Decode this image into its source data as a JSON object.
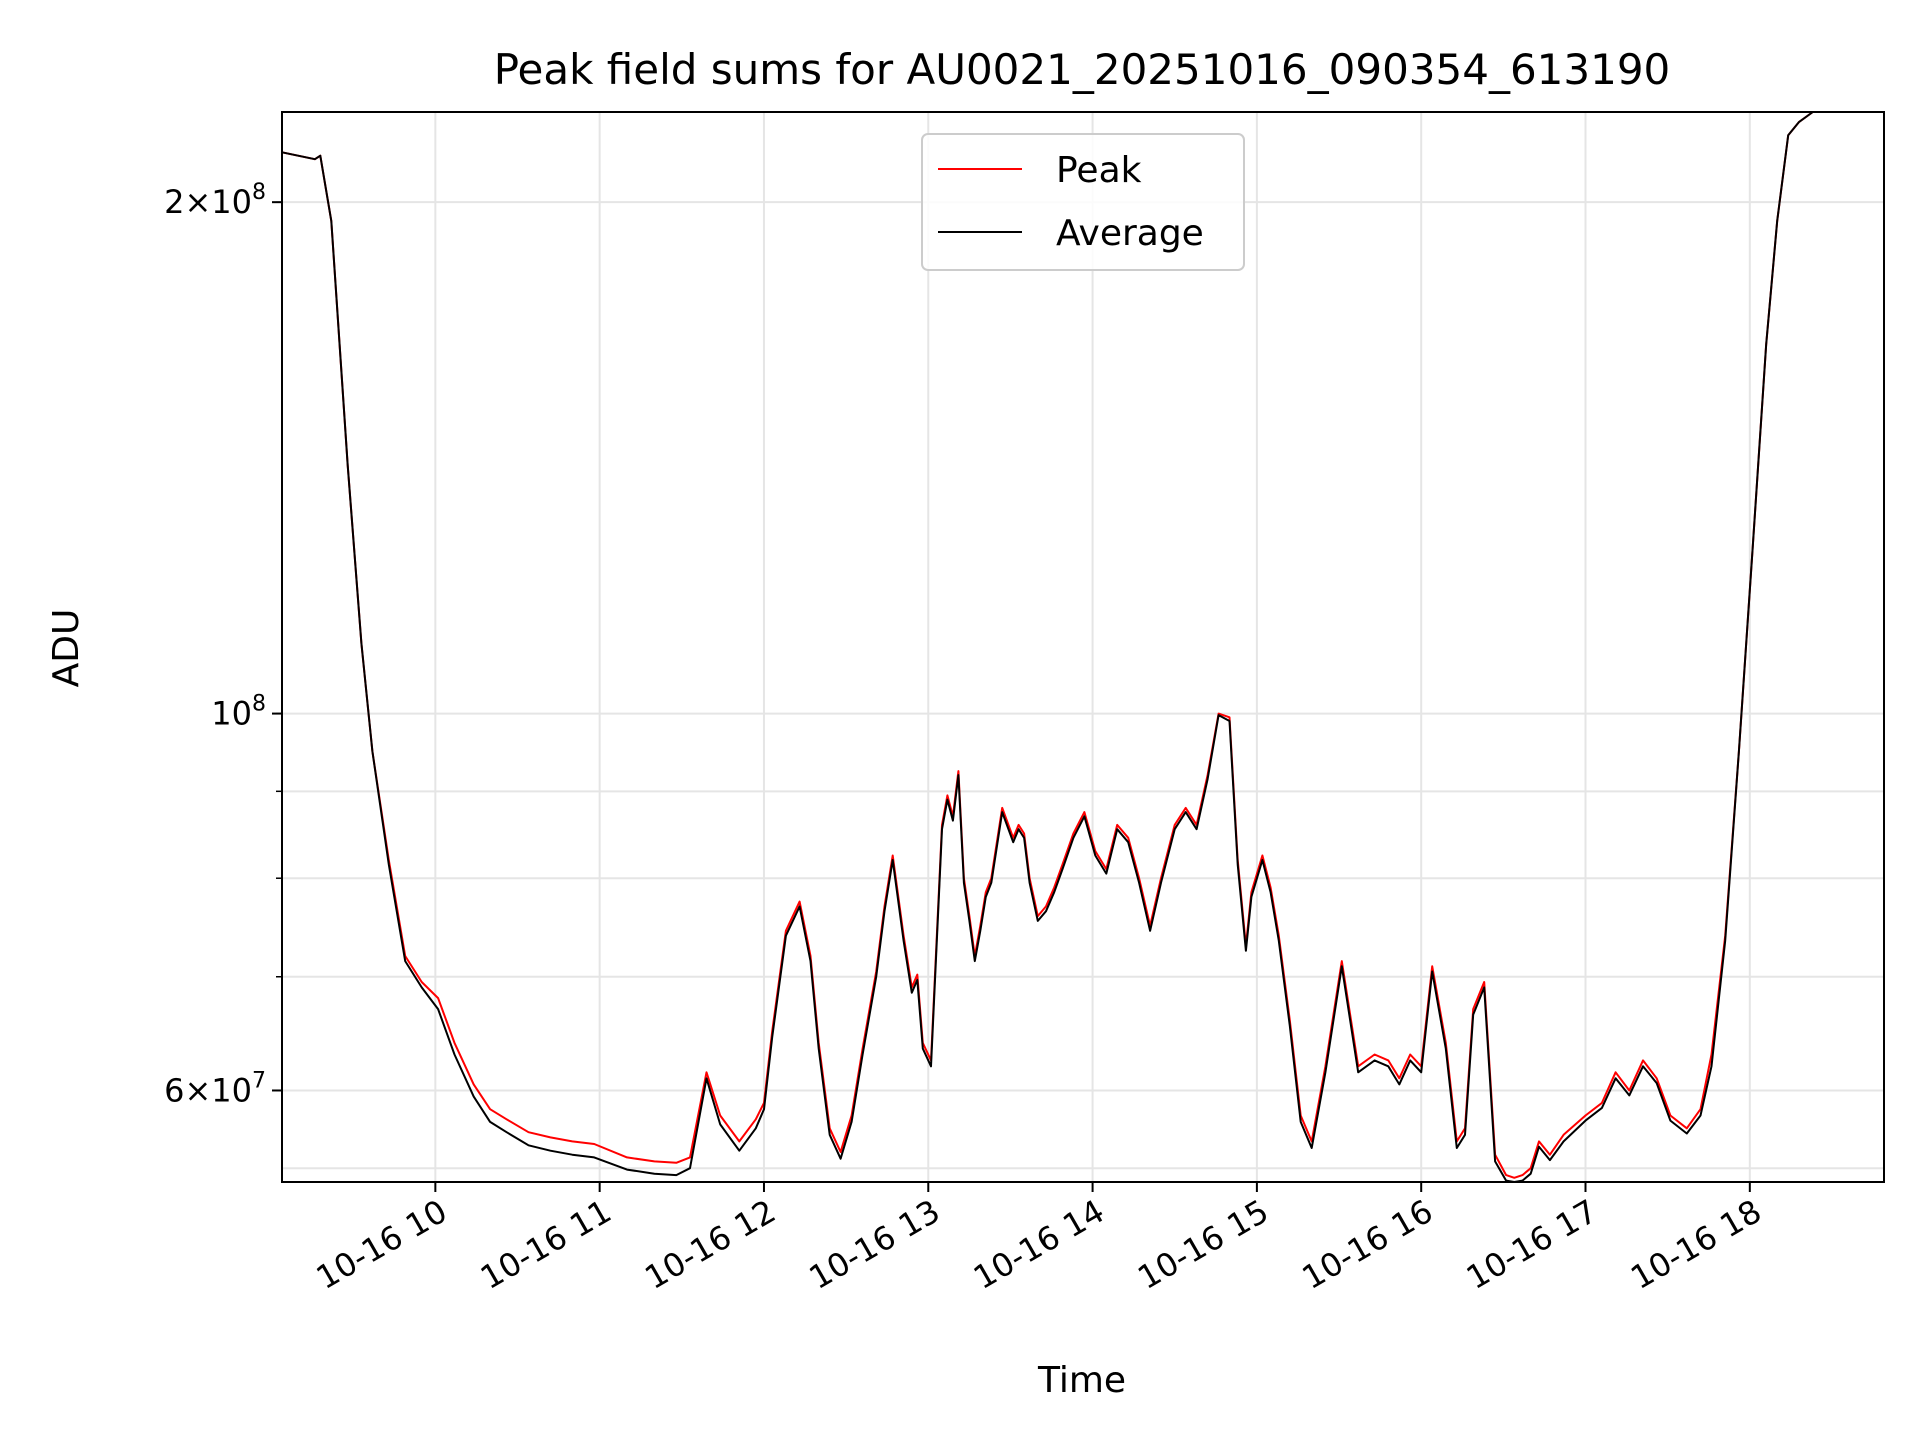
{
  "chart_data": {
    "type": "line",
    "title": "Peak field sums for AU0021_20251016_090354_613190",
    "xlabel": "Time",
    "ylabel": "ADU",
    "yscale": "log",
    "xlim": [
      "2025-10-16 09:04",
      "2025-10-16 18:49"
    ],
    "ylim": [
      53000000,
      226000000
    ],
    "grid": true,
    "legend_position": "top-center",
    "x_tick_labels": [
      "10-16 10",
      "10-16 11",
      "10-16 12",
      "10-16 13",
      "10-16 14",
      "10-16 15",
      "10-16 16",
      "10-16 17",
      "10-16 18"
    ],
    "y_tick_labels": [
      {
        "base": "2",
        "exp": "8",
        "value": 200000000
      },
      {
        "base": "",
        "exp": "8",
        "value": 100000000
      },
      {
        "base": "6",
        "exp": "7",
        "value": 60000000
      }
    ],
    "times_of_day": [
      "09:04",
      "09:16",
      "09:18",
      "09:22",
      "09:28",
      "09:33",
      "09:37",
      "09:43",
      "09:49",
      "09:55",
      "10:01",
      "10:07",
      "10:14",
      "10:20",
      "10:26",
      "10:34",
      "10:42",
      "10:50",
      "10:58",
      "11:10",
      "11:20",
      "11:28",
      "11:33",
      "11:39",
      "11:44",
      "11:51",
      "11:57",
      "12:00",
      "12:03",
      "12:08",
      "12:13",
      "12:17",
      "12:20",
      "12:24",
      "12:28",
      "12:32",
      "12:36",
      "12:41",
      "12:44",
      "12:47",
      "12:51",
      "12:54",
      "12:56",
      "12:58",
      "13:01",
      "13:05",
      "13:07",
      "13:09",
      "13:11",
      "13:13",
      "13:15",
      "13:17",
      "13:19",
      "13:21",
      "13:23",
      "13:27",
      "13:31",
      "13:33",
      "13:35",
      "13:37",
      "13:40",
      "13:43",
      "13:46",
      "13:49",
      "13:53",
      "13:57",
      "14:01",
      "14:05",
      "14:09",
      "14:13",
      "14:17",
      "14:21",
      "14:25",
      "14:30",
      "14:34",
      "14:38",
      "14:42",
      "14:46",
      "14:50",
      "14:53",
      "14:56",
      "14:58",
      "15:02",
      "15:05",
      "15:08",
      "15:12",
      "15:16",
      "15:20",
      "15:25",
      "15:31",
      "15:37",
      "15:43",
      "15:48",
      "15:52",
      "15:56",
      "16:00",
      "16:04",
      "16:09",
      "16:13",
      "16:16",
      "16:19",
      "16:23",
      "16:27",
      "16:31",
      "16:34",
      "16:37",
      "16:40",
      "16:43",
      "16:47",
      "16:52",
      "17:00",
      "17:06",
      "17:11",
      "17:16",
      "17:21",
      "17:26",
      "17:31",
      "17:37",
      "17:42",
      "17:46",
      "17:51",
      "17:56",
      "18:01",
      "18:06",
      "18:10",
      "18:14",
      "18:18",
      "18:23",
      "18:27",
      "18:31",
      "18:35",
      "18:39",
      "18:43",
      "18:49"
    ],
    "series": [
      {
        "name": "Peak",
        "color": "#ff0000",
        "values": [
          214000000,
          212000000,
          213000000,
          195000000,
          140000000,
          110000000,
          95000000,
          82000000,
          72000000,
          69500000,
          68000000,
          64000000,
          60500000,
          58500000,
          57700000,
          56700000,
          56300000,
          56000000,
          55800000,
          54800000,
          54500000,
          54400000,
          54800000,
          61500000,
          58000000,
          56000000,
          57700000,
          59000000,
          65000000,
          74500000,
          77500000,
          72000000,
          64000000,
          57000000,
          55200000,
          58000000,
          63500000,
          70500000,
          77000000,
          82500000,
          74000000,
          69000000,
          70200000,
          64000000,
          62500000,
          86000000,
          89500000,
          87000000,
          92500000,
          80000000,
          76000000,
          72000000,
          75000000,
          78500000,
          80000000,
          88000000,
          84500000,
          86000000,
          85000000,
          80000000,
          76000000,
          77000000,
          79000000,
          81500000,
          85000000,
          87500000,
          83000000,
          81000000,
          86000000,
          84500000,
          80000000,
          75000000,
          80000000,
          86000000,
          88000000,
          86000000,
          92000000,
          100000000,
          99500000,
          82000000,
          73000000,
          78500000,
          82500000,
          79000000,
          74000000,
          66000000,
          58000000,
          56000000,
          62000000,
          71500000,
          62000000,
          63000000,
          62500000,
          61000000,
          63000000,
          62000000,
          71000000,
          64000000,
          56000000,
          57000000,
          67000000,
          69500000,
          55000000,
          53500000,
          53300000,
          53500000,
          54000000,
          56000000,
          55000000,
          56500000,
          58000000,
          59000000,
          61500000,
          60000000,
          62500000,
          61000000,
          58000000,
          57000000,
          58500000,
          63000000,
          74000000,
          95000000,
          125000000,
          165000000,
          195000000,
          219000000,
          223000000,
          226000000
        ]
      },
      {
        "name": "Average",
        "color": "#000000",
        "values": [
          214000000,
          212000000,
          213000000,
          195000000,
          140000000,
          110000000,
          95000000,
          81500000,
          71500000,
          69000000,
          67000000,
          63000000,
          59500000,
          57500000,
          56700000,
          55700000,
          55300000,
          55000000,
          54800000,
          53900000,
          53600000,
          53500000,
          54000000,
          61000000,
          57300000,
          55300000,
          57000000,
          58500000,
          64500000,
          74000000,
          77000000,
          71500000,
          63500000,
          56500000,
          54700000,
          57500000,
          63000000,
          70000000,
          76500000,
          82000000,
          73500000,
          68500000,
          69700000,
          63500000,
          62000000,
          85500000,
          89000000,
          86500000,
          92000000,
          79500000,
          75500000,
          71500000,
          74500000,
          78000000,
          79500000,
          87500000,
          84000000,
          85500000,
          84500000,
          79500000,
          75500000,
          76500000,
          78500000,
          81000000,
          84500000,
          87000000,
          82500000,
          80500000,
          85500000,
          84000000,
          79500000,
          74500000,
          79500000,
          85500000,
          87500000,
          85500000,
          91500000,
          99800000,
          99000000,
          81500000,
          72500000,
          78000000,
          82000000,
          78500000,
          73500000,
          65500000,
          57500000,
          55500000,
          61500000,
          71000000,
          61500000,
          62500000,
          62000000,
          60500000,
          62500000,
          61500000,
          70500000,
          63500000,
          55500000,
          56500000,
          66500000,
          69000000,
          54500000,
          53100000,
          53000000,
          53100000,
          53600000,
          55600000,
          54600000,
          56000000,
          57600000,
          58600000,
          61000000,
          59600000,
          62000000,
          60600000,
          57600000,
          56600000,
          58000000,
          62000000,
          73500000,
          95000000,
          125000000,
          165000000,
          195000000,
          219000000,
          223000000,
          226000000
        ]
      }
    ]
  }
}
